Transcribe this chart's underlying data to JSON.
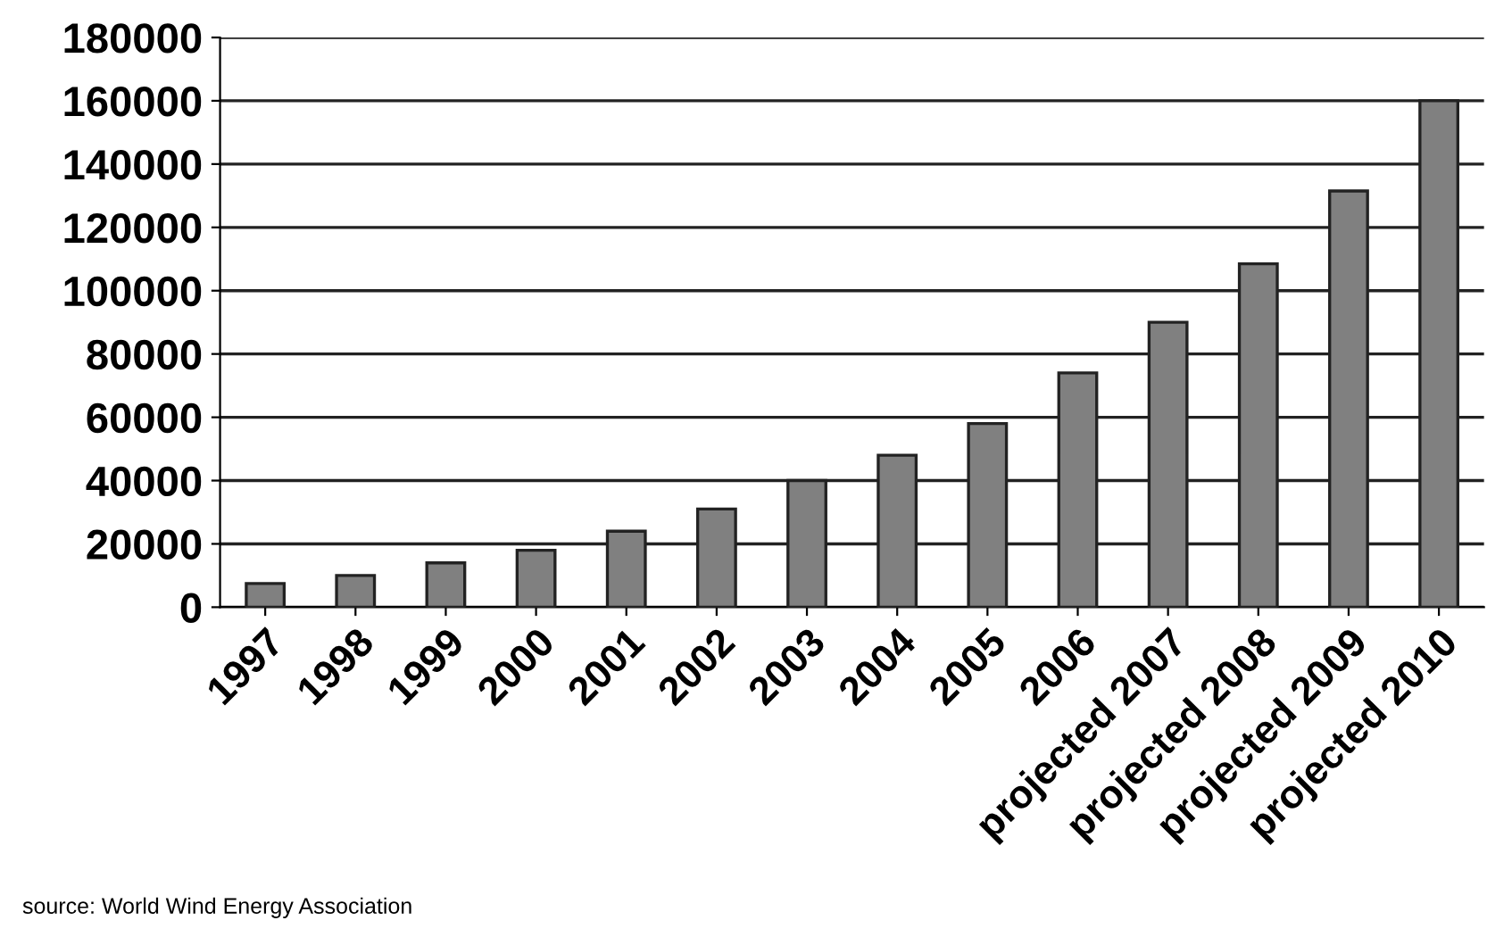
{
  "chart_data": {
    "type": "bar",
    "categories": [
      "1997",
      "1998",
      "1999",
      "2000",
      "2001",
      "2002",
      "2003",
      "2004",
      "2005",
      "2006",
      "projected 2007",
      "projected 2008",
      "projected 2009",
      "projected 2010"
    ],
    "values": [
      7500,
      10000,
      14000,
      18000,
      24000,
      31000,
      40000,
      48000,
      58000,
      74000,
      90000,
      108500,
      131500,
      160000
    ],
    "color": "#808080",
    "ylim": [
      0,
      180000
    ],
    "yticks": [
      0,
      20000,
      40000,
      60000,
      80000,
      100000,
      120000,
      140000,
      160000,
      180000
    ],
    "grid": "y",
    "annotations": [
      "source: World Wind Energy Association"
    ]
  }
}
